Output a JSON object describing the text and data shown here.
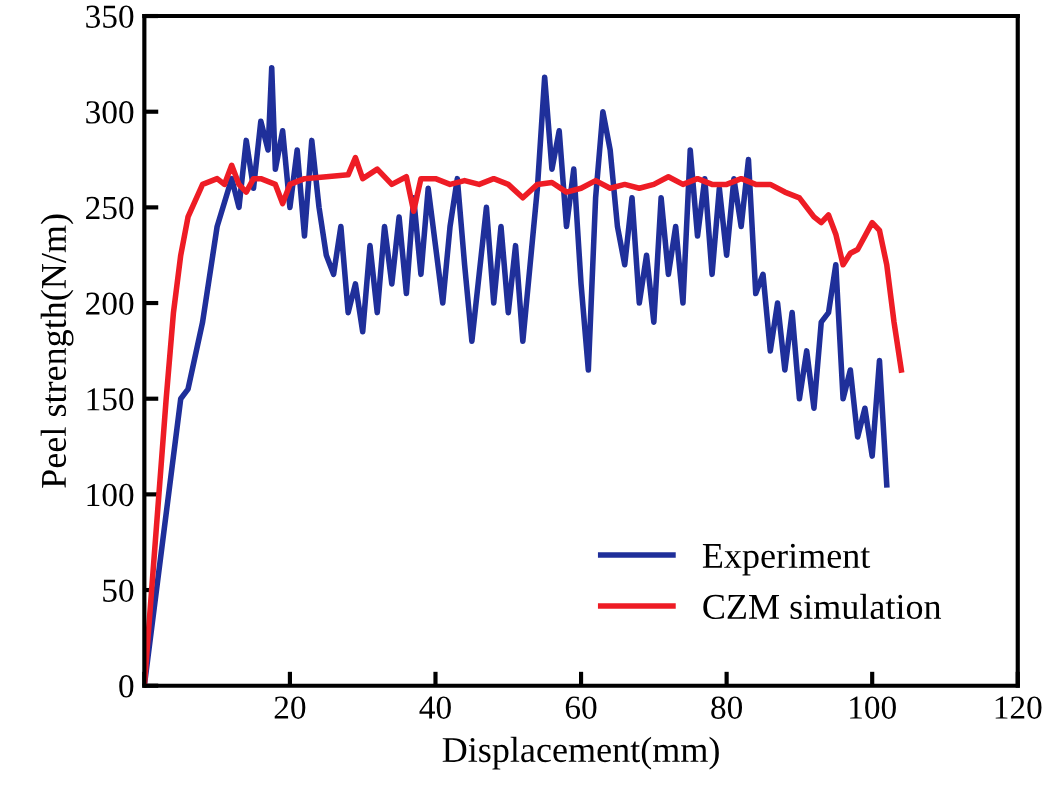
{
  "chart_data": {
    "type": "line",
    "xlabel": "Displacement(mm)",
    "ylabel": "Peel strength(N/m)",
    "xlim": [
      0,
      120
    ],
    "xticks": [
      {
        "value": 0,
        "label": null
      },
      20,
      40,
      60,
      80,
      100,
      120
    ],
    "ylim": [
      0,
      350
    ],
    "yticks": [
      0,
      50,
      100,
      150,
      200,
      250,
      300,
      350
    ],
    "grid": false,
    "legend": "bottom right",
    "marker": "none",
    "line_style": "solid",
    "series": [
      {
        "name": "Experiment",
        "color": "#1f2f9a",
        "x": [
          0,
          5,
          6,
          8,
          10,
          12,
          13,
          14,
          15,
          16,
          17,
          17.5,
          18,
          19,
          20,
          21,
          22,
          23,
          24,
          25,
          26,
          27,
          28,
          29,
          30,
          31,
          32,
          33,
          34,
          35,
          36,
          37,
          38,
          39,
          40,
          41,
          42,
          43,
          44,
          45,
          46,
          47,
          48,
          49,
          50,
          51,
          52,
          53,
          54,
          55,
          56,
          57,
          58,
          59,
          60,
          61,
          62,
          63,
          64,
          65,
          66,
          67,
          68,
          69,
          70,
          71,
          72,
          73,
          74,
          75,
          76,
          77,
          78,
          79,
          80,
          81,
          82,
          83,
          84,
          85,
          86,
          87,
          88,
          89,
          90,
          91,
          92,
          93,
          94,
          95,
          96,
          97,
          98,
          99,
          100,
          101,
          102
        ],
        "values": [
          0,
          150,
          155,
          190,
          240,
          265,
          250,
          285,
          260,
          295,
          280,
          323,
          270,
          290,
          250,
          280,
          235,
          285,
          250,
          225,
          215,
          240,
          195,
          210,
          185,
          230,
          195,
          240,
          210,
          245,
          205,
          255,
          215,
          260,
          230,
          200,
          240,
          265,
          220,
          180,
          215,
          250,
          200,
          240,
          195,
          230,
          180,
          220,
          260,
          318,
          270,
          290,
          240,
          270,
          210,
          165,
          255,
          300,
          280,
          240,
          220,
          255,
          200,
          225,
          190,
          255,
          215,
          240,
          200,
          280,
          235,
          265,
          215,
          260,
          225,
          265,
          240,
          275,
          205,
          215,
          175,
          200,
          165,
          195,
          150,
          175,
          145,
          190,
          195,
          220,
          150,
          165,
          130,
          145,
          120,
          170,
          105
        ]
      },
      {
        "name": "CZM simulation",
        "color": "#ee1c25",
        "x": [
          0,
          2,
          3,
          4,
          5,
          6,
          8,
          10,
          11,
          12,
          13,
          14,
          15,
          16,
          18,
          19,
          20,
          22,
          25,
          28,
          29,
          30,
          32,
          34,
          36,
          37,
          38,
          40,
          42,
          44,
          46,
          48,
          50,
          52,
          54,
          56,
          58,
          60,
          62,
          64,
          66,
          68,
          70,
          72,
          74,
          76,
          78,
          80,
          82,
          84,
          86,
          88,
          90,
          92,
          93,
          94,
          95,
          96,
          97,
          98,
          99,
          100,
          101,
          102,
          103,
          104
        ],
        "values": [
          0,
          100,
          150,
          195,
          225,
          245,
          262,
          265,
          262,
          272,
          262,
          258,
          265,
          265,
          262,
          252,
          262,
          265,
          266,
          267,
          276,
          265,
          270,
          262,
          266,
          248,
          265,
          265,
          262,
          264,
          262,
          265,
          262,
          255,
          262,
          263,
          258,
          260,
          264,
          260,
          262,
          260,
          262,
          266,
          262,
          265,
          262,
          262,
          265,
          262,
          262,
          258,
          255,
          245,
          242,
          246,
          236,
          220,
          226,
          228,
          235,
          242,
          238,
          220,
          190,
          165
        ]
      }
    ]
  }
}
